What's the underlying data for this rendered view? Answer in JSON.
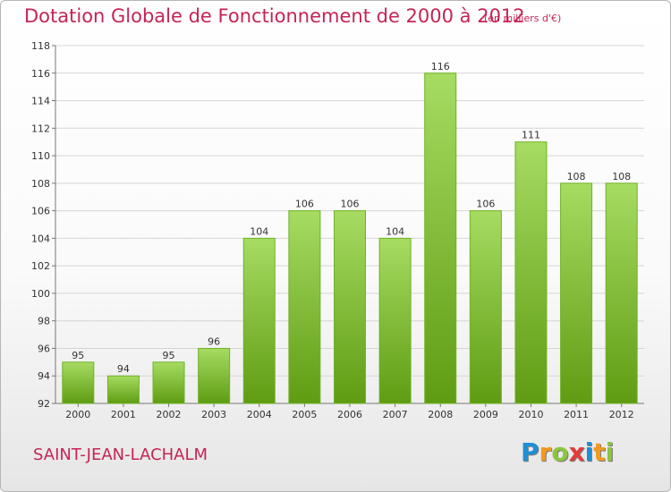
{
  "header": {
    "title": "Dotation Globale de Fonctionnement de 2000 à 2012",
    "subtitle": "(en milliers d'€)"
  },
  "footer": {
    "commune": "SAINT-JEAN-LACHALM",
    "logo": "Proxiti",
    "logo_letters": [
      {
        "ch": "P",
        "color": "#1f8fd6"
      },
      {
        "ch": "r",
        "color": "#f29a1f"
      },
      {
        "ch": "o",
        "color": "#8cc63f"
      },
      {
        "ch": "x",
        "color": "#e23c3c"
      },
      {
        "ch": "i",
        "color": "#1f8fd6"
      },
      {
        "ch": "t",
        "color": "#f29a1f"
      },
      {
        "ch": "i",
        "color": "#8cc63f"
      }
    ]
  },
  "colors": {
    "accent": "#c52454",
    "bar_light": "#a6dc62",
    "bar_dark": "#5f9c12",
    "grid": "#d5d5d5",
    "axis_text": "#333333"
  },
  "chart_data": {
    "type": "bar",
    "title": "Dotation Globale de Fonctionnement de 2000 à 2012",
    "subtitle": "(en milliers d'€)",
    "xlabel": "",
    "ylabel": "",
    "categories": [
      "2000",
      "2001",
      "2002",
      "2003",
      "2004",
      "2005",
      "2006",
      "2007",
      "2008",
      "2009",
      "2010",
      "2011",
      "2012"
    ],
    "values": [
      95,
      94,
      95,
      96,
      104,
      106,
      106,
      104,
      116,
      106,
      111,
      108,
      108
    ],
    "data_labels": [
      "95",
      "94",
      "95",
      "96",
      "104",
      "106",
      "106",
      "104",
      "116",
      "106",
      "111",
      "108",
      "108"
    ],
    "ylim": [
      92,
      118
    ],
    "yticks": [
      92,
      94,
      96,
      98,
      100,
      102,
      104,
      106,
      108,
      110,
      112,
      114,
      116,
      118
    ],
    "grid": true,
    "legend": "none"
  }
}
